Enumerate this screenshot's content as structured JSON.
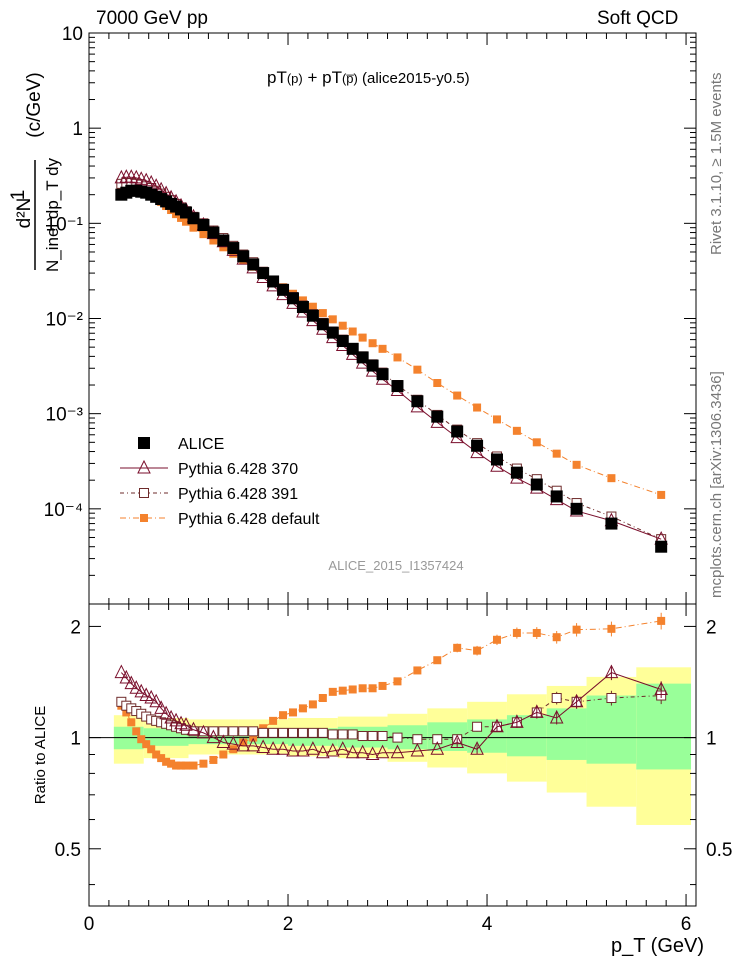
{
  "header": {
    "left": "7000 GeV pp",
    "right": "Soft QCD"
  },
  "side_labels": {
    "rivet": "Rivet 3.1.10, ≥ 1.5M events",
    "mcplots": "mcplots.cern.ch [arXiv:1306.3436]"
  },
  "watermark": "ALICE_2015_I1357424",
  "plot_title": {
    "main": "pT",
    "sup1": "(p)",
    "mid": " + pT",
    "sup2": "(p̅)",
    "tail": " (alice2015-y0.5)"
  },
  "colors": {
    "data": "#000000",
    "p370": "#7a0f2c",
    "p391": "#6e2b2b",
    "pdef": "#f4822d",
    "band_syst": "#ffff99",
    "band_stat": "#99ff99"
  },
  "chart_data": [
    {
      "type": "scatter",
      "title": "pT(p) + pT(p̅) (alice2015-y0.5)",
      "ylabel_lines": [
        "1",
        "d²N",
        "N_inel dp_T dy",
        "(c/GeV)"
      ],
      "xlim": [
        0,
        6.1
      ],
      "ylim": [
        1e-05,
        10
      ],
      "yscale": "log",
      "yticks": [
        {
          "value": 10,
          "label": "10"
        },
        {
          "value": 1,
          "label": "1"
        },
        {
          "value": 0.1,
          "label": "10⁻¹"
        },
        {
          "value": 0.01,
          "label": "10⁻²"
        },
        {
          "value": 0.001,
          "label": "10⁻³"
        },
        {
          "value": 0.0001,
          "label": "10⁻⁴"
        }
      ],
      "x": [
        0.325,
        0.375,
        0.425,
        0.475,
        0.525,
        0.575,
        0.625,
        0.675,
        0.725,
        0.775,
        0.825,
        0.875,
        0.925,
        0.975,
        1.05,
        1.15,
        1.25,
        1.35,
        1.45,
        1.55,
        1.65,
        1.75,
        1.85,
        1.95,
        2.05,
        2.15,
        2.25,
        2.35,
        2.45,
        2.55,
        2.65,
        2.75,
        2.85,
        2.95,
        3.1,
        3.3,
        3.5,
        3.7,
        3.9,
        4.1,
        4.3,
        4.5,
        4.7,
        4.9,
        5.25,
        5.75
      ],
      "legend": [
        {
          "key": "data",
          "label": "ALICE",
          "marker": "square-filled"
        },
        {
          "key": "p370",
          "label": "Pythia 6.428 370",
          "marker": "triangle-open"
        },
        {
          "key": "p391",
          "label": "Pythia 6.428 391",
          "marker": "square-open"
        },
        {
          "key": "pdef",
          "label": "Pythia 6.428 default",
          "marker": "square-small"
        }
      ],
      "series": [
        {
          "key": "data",
          "name": "ALICE",
          "values": [
            0.2,
            0.21,
            0.22,
            0.22,
            0.215,
            0.21,
            0.2,
            0.19,
            0.18,
            0.17,
            0.16,
            0.15,
            0.14,
            0.13,
            0.113,
            0.096,
            0.08,
            0.066,
            0.055,
            0.045,
            0.037,
            0.03,
            0.0245,
            0.02,
            0.0163,
            0.0132,
            0.0107,
            0.0087,
            0.0071,
            0.0058,
            0.0048,
            0.0039,
            0.0032,
            0.0026,
            0.00195,
            0.00135,
            0.00093,
            0.00065,
            0.00046,
            0.00033,
            0.00024,
            0.00018,
            0.000135,
            0.0001,
            7e-05,
            4e-05
          ]
        },
        {
          "key": "p370",
          "name": "Pythia 6.428 370",
          "values": [
            0.3,
            0.305,
            0.305,
            0.3,
            0.29,
            0.28,
            0.265,
            0.245,
            0.225,
            0.205,
            0.185,
            0.168,
            0.152,
            0.138,
            0.117,
            0.096,
            0.078,
            0.064,
            0.052,
            0.042,
            0.034,
            0.027,
            0.022,
            0.0178,
            0.0144,
            0.0117,
            0.0095,
            0.0077,
            0.0063,
            0.0052,
            0.0042,
            0.0034,
            0.0028,
            0.0023,
            0.00175,
            0.00118,
            0.00081,
            0.00056,
            0.00039,
            0.00028,
            0.00021,
            0.000165,
            0.000125,
            9.5e-05,
            7.5e-05,
            4.8e-05
          ]
        },
        {
          "key": "p391",
          "name": "Pythia 6.428 391",
          "values": [
            0.26,
            0.265,
            0.265,
            0.26,
            0.255,
            0.245,
            0.235,
            0.22,
            0.205,
            0.19,
            0.175,
            0.16,
            0.147,
            0.134,
            0.117,
            0.1,
            0.084,
            0.07,
            0.058,
            0.047,
            0.039,
            0.031,
            0.025,
            0.0205,
            0.0168,
            0.0137,
            0.0111,
            0.009,
            0.0073,
            0.006,
            0.0049,
            0.004,
            0.0033,
            0.0027,
            0.002,
            0.0014,
            0.00097,
            0.00068,
            0.00049,
            0.000355,
            0.000265,
            0.000205,
            0.000155,
            0.000115,
            8.3e-05,
            4.8e-05
          ]
        },
        {
          "key": "pdef",
          "name": "Pythia 6.428 default",
          "values": [
            0.25,
            0.255,
            0.25,
            0.24,
            0.23,
            0.215,
            0.2,
            0.185,
            0.168,
            0.152,
            0.138,
            0.125,
            0.114,
            0.104,
            0.09,
            0.077,
            0.066,
            0.056,
            0.048,
            0.041,
            0.035,
            0.0295,
            0.025,
            0.0213,
            0.0182,
            0.0155,
            0.0133,
            0.0114,
            0.0098,
            0.0084,
            0.0073,
            0.0063,
            0.0055,
            0.0048,
            0.0039,
            0.0029,
            0.0021,
            0.00155,
            0.00116,
            0.00087,
            0.00066,
            0.0005,
            0.00038,
            0.00029,
            0.00021,
            0.00014
          ]
        }
      ]
    },
    {
      "type": "scatter",
      "title": "",
      "ylabel": "Ratio to ALICE",
      "xlabel": "p_T (GeV)",
      "xlim": [
        0,
        6.1
      ],
      "ylim": [
        0.35,
        2.3
      ],
      "yscale": "log",
      "xticks": [
        {
          "value": 0,
          "label": "0"
        },
        {
          "value": 2,
          "label": "2"
        },
        {
          "value": 4,
          "label": "4"
        },
        {
          "value": 6,
          "label": "6"
        }
      ],
      "yticks": [
        {
          "value": 0.5,
          "label": "0.5"
        },
        {
          "value": 1,
          "label": "1"
        },
        {
          "value": 2,
          "label": "2"
        }
      ],
      "band": {
        "x_edges": [
          0.25,
          0.55,
          1.0,
          1.5,
          2.0,
          2.5,
          3.0,
          3.4,
          3.8,
          4.2,
          4.6,
          5.0,
          5.5,
          6.05
        ],
        "stat_lo": [
          0.93,
          0.95,
          0.96,
          0.96,
          0.95,
          0.94,
          0.93,
          0.92,
          0.91,
          0.89,
          0.87,
          0.85,
          0.82
        ],
        "stat_hi": [
          1.07,
          1.06,
          1.05,
          1.05,
          1.06,
          1.07,
          1.08,
          1.1,
          1.12,
          1.15,
          1.2,
          1.3,
          1.4
        ],
        "syst_lo": [
          0.85,
          0.88,
          0.9,
          0.9,
          0.89,
          0.88,
          0.86,
          0.83,
          0.8,
          0.76,
          0.71,
          0.65,
          0.58
        ],
        "syst_hi": [
          1.15,
          1.13,
          1.12,
          1.12,
          1.13,
          1.14,
          1.16,
          1.2,
          1.25,
          1.31,
          1.38,
          1.46,
          1.55
        ]
      },
      "series": [
        {
          "key": "p370",
          "name": "Pythia 6.428 370",
          "values": [
            1.5,
            1.45,
            1.4,
            1.36,
            1.33,
            1.3,
            1.28,
            1.25,
            1.2,
            1.16,
            1.13,
            1.11,
            1.09,
            1.08,
            1.05,
            1.03,
            1.0,
            0.97,
            0.96,
            0.95,
            0.95,
            0.94,
            0.93,
            0.93,
            0.92,
            0.92,
            0.93,
            0.91,
            0.92,
            0.93,
            0.91,
            0.91,
            0.9,
            0.91,
            0.91,
            0.92,
            0.93,
            0.97,
            0.93,
            1.07,
            1.1,
            1.17,
            1.13,
            1.25,
            1.5,
            1.35
          ]
        },
        {
          "key": "p391",
          "name": "Pythia 6.428 391",
          "values": [
            1.25,
            1.22,
            1.2,
            1.18,
            1.16,
            1.14,
            1.12,
            1.11,
            1.1,
            1.09,
            1.08,
            1.07,
            1.06,
            1.05,
            1.04,
            1.04,
            1.04,
            1.04,
            1.04,
            1.04,
            1.04,
            1.03,
            1.03,
            1.03,
            1.03,
            1.03,
            1.03,
            1.03,
            1.02,
            1.02,
            1.02,
            1.01,
            1.01,
            1.01,
            1.0,
            0.99,
            0.99,
            0.99,
            1.07,
            1.07,
            1.1,
            1.17,
            1.28,
            1.25,
            1.28,
            1.3
          ]
        },
        {
          "key": "pdef",
          "name": "Pythia 6.428 default",
          "values": [
            1.22,
            1.17,
            1.1,
            1.04,
            0.99,
            0.96,
            0.93,
            0.9,
            0.88,
            0.86,
            0.85,
            0.84,
            0.84,
            0.84,
            0.84,
            0.85,
            0.87,
            0.9,
            0.93,
            0.97,
            1.0,
            1.06,
            1.11,
            1.15,
            1.17,
            1.2,
            1.23,
            1.28,
            1.33,
            1.34,
            1.35,
            1.36,
            1.36,
            1.38,
            1.42,
            1.52,
            1.62,
            1.75,
            1.72,
            1.84,
            1.92,
            1.92,
            1.87,
            1.96,
            1.97,
            2.07
          ]
        }
      ]
    }
  ]
}
